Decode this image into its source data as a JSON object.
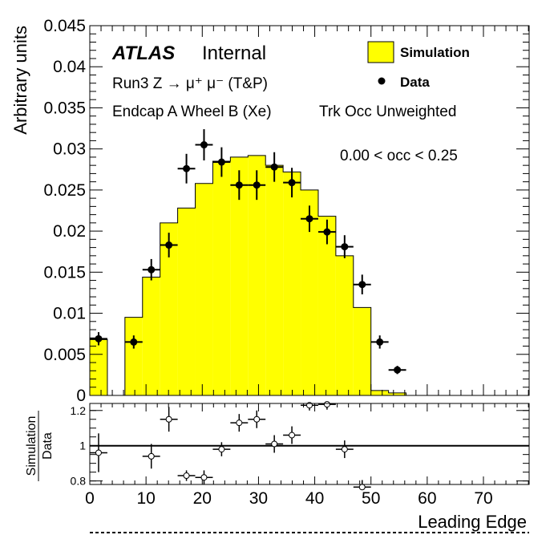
{
  "header": {
    "atlas_label": "ATLAS",
    "status_label": "Internal",
    "process_line": "Run3 Z → μ⁺ μ⁻ (T&P)",
    "region_line": "Endcap A Wheel B (Xe)",
    "weight_line": "Trk Occ Unweighted",
    "occupancy_range": "0.00 < occ < 0.25"
  },
  "legend": {
    "simulation": "Simulation",
    "data": "Data"
  },
  "colors": {
    "simulation_fill": "#ffff00",
    "simulation_line": "#000000",
    "data_marker": "#000000",
    "ratio_marker_fill": "#ffffff"
  },
  "chart_data": [
    {
      "type": "bar",
      "panel": "main",
      "xlabel": "Leading Edge",
      "ylabel": "Arbitrary units",
      "xlim": [
        0,
        78.125
      ],
      "ylim": [
        0,
        0.045
      ],
      "bin_width": 3.125,
      "x_ticks": [
        0,
        10,
        20,
        30,
        40,
        50,
        60,
        70
      ],
      "y_ticks": [
        0,
        0.005,
        0.01,
        0.015,
        0.02,
        0.025,
        0.03,
        0.035,
        0.04,
        0.045
      ],
      "y_tick_labels": [
        "0",
        "0.005",
        "0.01",
        "0.015",
        "0.02",
        "0.025",
        "0.03",
        "0.035",
        "0.04",
        "0.045"
      ],
      "series": [
        {
          "name": "Simulation",
          "kind": "histogram",
          "bin_edges": [
            0,
            3.125,
            6.25,
            9.375,
            12.5,
            15.625,
            18.75,
            21.875,
            25,
            28.125,
            31.25,
            34.375,
            37.5,
            40.625,
            43.75,
            46.875,
            50,
            53.125,
            56.25,
            59.375,
            62.5,
            65.625,
            68.75,
            71.875,
            75,
            78.125
          ],
          "values": [
            0.0068,
            0.0,
            0.0095,
            0.0144,
            0.021,
            0.0228,
            0.0258,
            0.0285,
            0.029,
            0.0292,
            0.028,
            0.0272,
            0.025,
            0.0218,
            0.017,
            0.0107,
            0.0006,
            0.0003,
            0,
            0,
            0,
            0,
            0,
            0,
            0
          ]
        },
        {
          "name": "Data",
          "kind": "points",
          "x": [
            1.5625,
            7.8125,
            10.9375,
            14.0625,
            17.1875,
            20.3125,
            23.4375,
            26.5625,
            29.6875,
            32.8125,
            35.9375,
            39.0625,
            42.1875,
            45.3125,
            48.4375,
            51.5625,
            54.6875
          ],
          "values": [
            0.0069,
            0.0065,
            0.0153,
            0.0183,
            0.0276,
            0.0305,
            0.0284,
            0.0256,
            0.0256,
            0.0278,
            0.0259,
            0.0215,
            0.0199,
            0.0181,
            0.0135,
            0.0065,
            0.0031
          ],
          "errors": [
            0.0008,
            0.0008,
            0.0013,
            0.0015,
            0.0018,
            0.0019,
            0.0018,
            0.0018,
            0.0018,
            0.0018,
            0.0018,
            0.0016,
            0.0015,
            0.0014,
            0.0012,
            0.0008,
            0.0005
          ]
        }
      ]
    },
    {
      "type": "scatter",
      "panel": "ratio",
      "xlabel": "Leading Edge",
      "ylabel_top": "Simulation",
      "ylabel_bottom": "Data",
      "xlim": [
        0,
        78.125
      ],
      "ylim": [
        0.78,
        1.24
      ],
      "y_ticks": [
        0.8,
        1,
        1.2
      ],
      "y_tick_labels": [
        "0.8",
        "1",
        "1.2"
      ],
      "reference_line": 1.0,
      "series": [
        {
          "name": "Simulation/Data",
          "x": [
            1.5625,
            10.9375,
            14.0625,
            17.1875,
            20.3125,
            23.4375,
            26.5625,
            29.6875,
            32.8125,
            35.9375,
            39.0625,
            42.1875,
            45.3125,
            48.4375
          ],
          "values": [
            0.96,
            0.94,
            1.15,
            0.83,
            0.82,
            0.98,
            1.13,
            1.15,
            1.01,
            1.06,
            1.23,
            1.235,
            0.98,
            0.765
          ],
          "errors": [
            0.11,
            0.07,
            0.07,
            0.03,
            0.04,
            0.04,
            0.05,
            0.05,
            0.05,
            0.05,
            0.03,
            0.03,
            0.05,
            0.04
          ]
        }
      ]
    }
  ]
}
